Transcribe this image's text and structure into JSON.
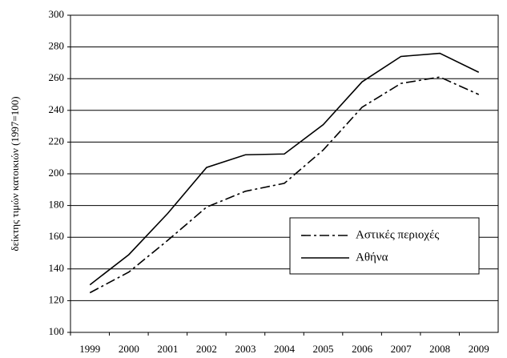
{
  "chart_data": {
    "type": "line",
    "y_label": "δείκτης τιμών κατοικιών (1997=100)",
    "categories": [
      "1999",
      "2000",
      "2001",
      "2002",
      "2003",
      "2004",
      "2005",
      "2006",
      "2007",
      "2008",
      "2009"
    ],
    "series": [
      {
        "name": "Αστικές περιοχές",
        "color": "#000000",
        "dash": "dash-dot",
        "values": [
          125,
          138,
          158,
          179,
          189,
          194,
          215,
          242,
          257,
          261,
          250
        ]
      },
      {
        "name": "Αθήνα",
        "color": "#000000",
        "dash": "solid",
        "values": [
          130,
          149,
          175,
          204,
          212,
          212.5,
          231,
          258,
          274,
          276,
          264
        ]
      }
    ],
    "ylim": [
      100,
      300
    ],
    "yticks": [
      100,
      120,
      140,
      160,
      180,
      200,
      220,
      240,
      260,
      280,
      300
    ],
    "grid": true,
    "legend": "lower right"
  }
}
